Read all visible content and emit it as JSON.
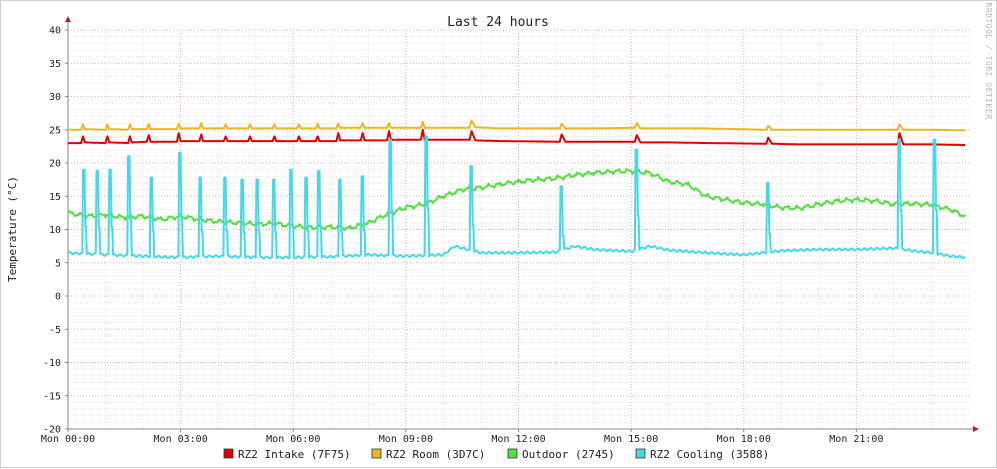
{
  "chart_data": {
    "type": "line",
    "title": "Last 24 hours",
    "ylabel": "Temperature (°C)",
    "watermark": "RRDTOOL / TOBI OETIKER",
    "ylim": [
      -20,
      40
    ],
    "yticks": [
      40,
      35,
      30,
      25,
      20,
      15,
      10,
      5,
      0,
      -5,
      -10,
      -15,
      -20
    ],
    "xlim_hours": [
      0,
      24
    ],
    "xticks": [
      {
        "h": 0,
        "label": "Mon 00:00"
      },
      {
        "h": 3,
        "label": "Mon 03:00"
      },
      {
        "h": 6,
        "label": "Mon 06:00"
      },
      {
        "h": 9,
        "label": "Mon 09:00"
      },
      {
        "h": 12,
        "label": "Mon 12:00"
      },
      {
        "h": 15,
        "label": "Mon 15:00"
      },
      {
        "h": 18,
        "label": "Mon 18:00"
      },
      {
        "h": 21,
        "label": "Mon 21:00"
      }
    ],
    "grid": true,
    "legend_position": "bottom",
    "series": [
      {
        "name": "RZ2 Intake (7F75)",
        "color": "#e00000",
        "x": [
          0,
          0.35,
          0.4,
          0.45,
          1.0,
          1.05,
          1.1,
          1.6,
          1.65,
          1.7,
          2.1,
          2.15,
          2.2,
          2.9,
          2.95,
          3.0,
          3.5,
          3.55,
          3.6,
          4.15,
          4.2,
          4.25,
          4.8,
          4.85,
          4.9,
          5.45,
          5.5,
          5.55,
          6.1,
          6.15,
          6.2,
          6.6,
          6.65,
          6.7,
          7.15,
          7.2,
          7.25,
          7.8,
          7.85,
          7.9,
          8.5,
          8.55,
          8.6,
          9.4,
          9.45,
          9.5,
          10.7,
          10.75,
          10.85,
          11.5,
          13.1,
          13.15,
          13.25,
          14.0,
          15.1,
          15.15,
          15.25,
          16.0,
          17.0,
          18.6,
          18.65,
          18.75,
          19.4,
          22.1,
          22.15,
          22.25,
          23.0,
          23.9
        ],
        "values": [
          23.0,
          23.0,
          24.0,
          23.1,
          23.0,
          24.0,
          23.1,
          23.0,
          24.0,
          23.1,
          23.2,
          24.2,
          23.2,
          23.2,
          24.5,
          23.3,
          23.3,
          24.3,
          23.3,
          23.3,
          24.0,
          23.3,
          23.3,
          24.0,
          23.3,
          23.3,
          24.0,
          23.3,
          23.3,
          24.0,
          23.3,
          23.3,
          24.0,
          23.3,
          23.3,
          24.5,
          23.4,
          23.4,
          24.5,
          23.4,
          23.4,
          24.8,
          23.5,
          23.5,
          25.0,
          23.5,
          23.5,
          24.8,
          23.4,
          23.3,
          23.2,
          24.3,
          23.2,
          23.2,
          23.2,
          24.2,
          23.1,
          23.1,
          23.0,
          22.9,
          23.8,
          22.9,
          22.8,
          22.8,
          24.5,
          22.8,
          22.8,
          22.7
        ]
      },
      {
        "name": "RZ2 Room (3D7C)",
        "color": "#e8b820",
        "x": [
          0,
          0.35,
          0.4,
          0.45,
          1.0,
          1.05,
          1.1,
          1.6,
          1.65,
          1.7,
          2.1,
          2.15,
          2.2,
          2.9,
          2.95,
          3.0,
          3.5,
          3.55,
          3.6,
          4.15,
          4.2,
          4.25,
          4.8,
          4.85,
          4.9,
          5.45,
          5.5,
          5.55,
          6.1,
          6.15,
          6.2,
          6.6,
          6.65,
          6.7,
          7.15,
          7.2,
          7.25,
          7.8,
          7.85,
          7.9,
          8.5,
          8.55,
          8.6,
          9.4,
          9.45,
          9.5,
          10.7,
          10.75,
          10.85,
          11.5,
          13.1,
          13.15,
          13.25,
          14.0,
          15.1,
          15.15,
          15.25,
          16.0,
          17.0,
          18.6,
          18.65,
          18.75,
          19.4,
          22.1,
          22.15,
          22.25,
          23.0,
          23.9
        ],
        "values": [
          25.0,
          25.0,
          25.8,
          25.1,
          25.0,
          25.8,
          25.1,
          25.0,
          25.8,
          25.1,
          25.1,
          25.9,
          25.1,
          25.1,
          25.9,
          25.2,
          25.2,
          26.0,
          25.2,
          25.2,
          25.8,
          25.2,
          25.2,
          25.8,
          25.2,
          25.2,
          25.8,
          25.2,
          25.2,
          25.8,
          25.2,
          25.2,
          25.9,
          25.2,
          25.2,
          25.9,
          25.3,
          25.3,
          26.0,
          25.3,
          25.3,
          26.0,
          25.3,
          25.3,
          26.2,
          25.3,
          25.3,
          26.4,
          25.4,
          25.2,
          25.2,
          25.9,
          25.2,
          25.2,
          25.3,
          26.0,
          25.2,
          25.2,
          25.2,
          25.0,
          25.6,
          25.0,
          25.0,
          25.0,
          25.8,
          25.0,
          25.0,
          24.9
        ]
      },
      {
        "name": "Outdoor (2745)",
        "color": "#55dd44",
        "x": [
          0,
          0.5,
          1.0,
          1.5,
          2.0,
          2.5,
          3.0,
          3.5,
          4.0,
          4.5,
          5.0,
          5.5,
          6.0,
          6.5,
          7.0,
          7.5,
          8.0,
          8.5,
          9.0,
          9.5,
          10.0,
          10.5,
          11.0,
          11.5,
          12.0,
          12.5,
          13.0,
          13.5,
          14.0,
          14.5,
          15.0,
          15.5,
          16.0,
          16.5,
          17.0,
          17.5,
          18.0,
          18.5,
          19.0,
          19.5,
          20.0,
          20.5,
          21.0,
          21.5,
          22.0,
          22.5,
          23.0,
          23.5,
          23.9
        ],
        "values": [
          12.5,
          12.0,
          12.2,
          11.8,
          12.0,
          11.5,
          12.0,
          11.5,
          11.2,
          11.0,
          10.8,
          10.9,
          10.5,
          10.3,
          10.4,
          10.2,
          11.0,
          12.3,
          13.3,
          13.8,
          15.0,
          16.0,
          16.3,
          16.8,
          17.2,
          17.5,
          17.7,
          18.2,
          18.5,
          18.7,
          18.8,
          18.5,
          17.2,
          16.8,
          15.0,
          14.5,
          14.0,
          13.8,
          13.3,
          13.2,
          13.8,
          14.3,
          14.5,
          14.3,
          13.8,
          13.9,
          13.7,
          13.0,
          12.0
        ]
      },
      {
        "name": "RZ2 Cooling (3588)",
        "color": "#44d8e8",
        "spike_hours": [
          0.4,
          0.75,
          1.1,
          1.6,
          2.2,
          2.95,
          3.5,
          4.15,
          4.6,
          5.0,
          5.45,
          5.9,
          6.3,
          6.65,
          7.2,
          7.8,
          8.55,
          9.5,
          10.7,
          13.1,
          15.1,
          18.6,
          22.1,
          23.05
        ],
        "spike_peaks": [
          19.0,
          18.8,
          19.0,
          21.0,
          17.8,
          21.5,
          17.8,
          17.8,
          17.5,
          17.5,
          17.5,
          19.0,
          17.8,
          18.8,
          17.5,
          18.0,
          23.5,
          24.0,
          19.5,
          16.5,
          22.0,
          17.0,
          23.5,
          23.5
        ],
        "x": [
          0,
          1.0,
          2.0,
          3.0,
          4.0,
          5.0,
          6.0,
          7.0,
          8.0,
          9.0,
          10.0,
          10.3,
          11.0,
          12.0,
          13.0,
          13.5,
          14.0,
          15.0,
          15.5,
          16.0,
          17.0,
          18.0,
          19.0,
          20.0,
          21.0,
          22.0,
          22.5,
          23.0,
          23.5,
          23.9
        ],
        "values": [
          6.5,
          6.2,
          6.0,
          5.8,
          6.0,
          5.8,
          5.8,
          5.9,
          6.2,
          6.0,
          6.2,
          7.5,
          6.5,
          6.5,
          6.6,
          7.5,
          7.0,
          6.7,
          7.5,
          6.9,
          6.5,
          6.2,
          6.8,
          7.0,
          7.0,
          7.2,
          6.8,
          6.5,
          6.0,
          5.8
        ]
      }
    ]
  }
}
